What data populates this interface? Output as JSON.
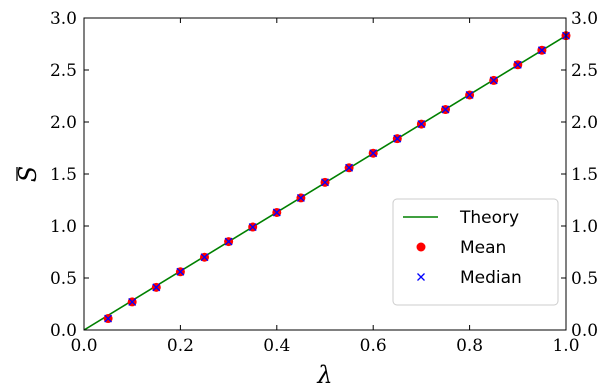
{
  "chart_data": {
    "type": "line",
    "xlabel": "λ",
    "ylabel": "S",
    "ylabel_overline": true,
    "xlim": [
      0.0,
      1.0
    ],
    "ylim": [
      0.0,
      3.0
    ],
    "xticks": [
      "0.0",
      "0.2",
      "0.4",
      "0.6",
      "0.8",
      "1.0"
    ],
    "yticks": [
      "0.0",
      "0.5",
      "1.0",
      "1.5",
      "2.0",
      "2.5",
      "3.0"
    ],
    "secondary_y_axis": true,
    "grid": false,
    "legend_position": "lower-right",
    "series": [
      {
        "name": "Theory",
        "kind": "line",
        "color": "#008000",
        "x": [
          0.0,
          1.0
        ],
        "y": [
          0.0,
          2.83
        ]
      },
      {
        "name": "Mean",
        "kind": "scatter",
        "marker": "circle",
        "color": "#ff0000",
        "x": [
          0.05,
          0.1,
          0.15,
          0.2,
          0.25,
          0.3,
          0.35,
          0.4,
          0.45,
          0.5,
          0.55,
          0.6,
          0.65,
          0.7,
          0.75,
          0.8,
          0.85,
          0.9,
          0.95,
          1.0
        ],
        "y": [
          0.11,
          0.27,
          0.41,
          0.56,
          0.7,
          0.85,
          0.99,
          1.13,
          1.27,
          1.42,
          1.56,
          1.7,
          1.84,
          1.98,
          2.12,
          2.26,
          2.4,
          2.55,
          2.69,
          2.83
        ]
      },
      {
        "name": "Median",
        "kind": "scatter",
        "marker": "x",
        "color": "#0000ff",
        "x": [
          0.05,
          0.1,
          0.15,
          0.2,
          0.25,
          0.3,
          0.35,
          0.4,
          0.45,
          0.5,
          0.55,
          0.6,
          0.65,
          0.7,
          0.75,
          0.8,
          0.85,
          0.9,
          0.95,
          1.0
        ],
        "y": [
          0.11,
          0.27,
          0.41,
          0.56,
          0.7,
          0.85,
          0.99,
          1.13,
          1.27,
          1.42,
          1.56,
          1.7,
          1.84,
          1.98,
          2.12,
          2.26,
          2.4,
          2.55,
          2.69,
          2.83
        ]
      }
    ]
  }
}
